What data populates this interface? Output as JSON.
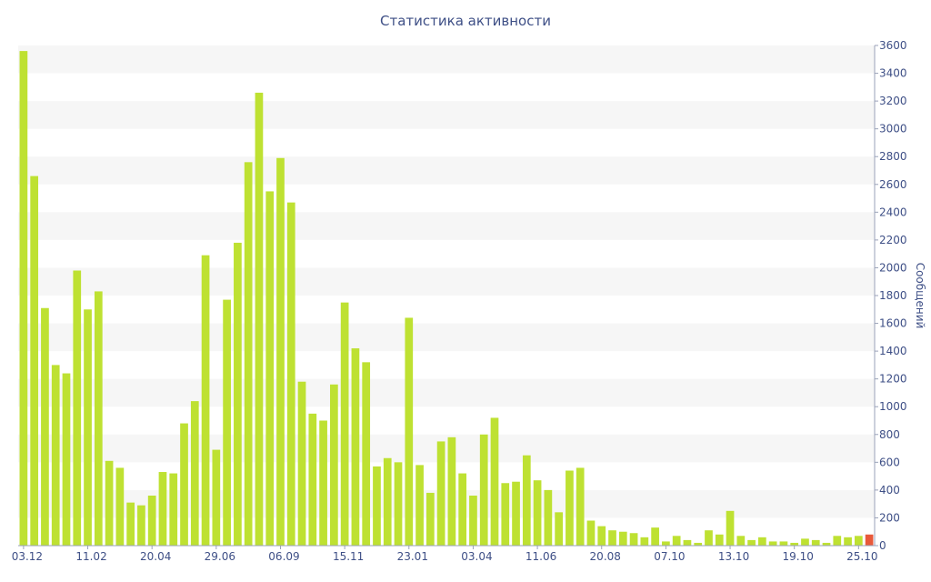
{
  "chart_data": {
    "type": "bar",
    "title": "Статистика активности",
    "ylabel": "Сообщений",
    "xlabel": "",
    "ylim": [
      0,
      3600
    ],
    "y_ticks": [
      0,
      200,
      400,
      600,
      800,
      1000,
      1200,
      1400,
      1600,
      1800,
      2000,
      2200,
      2400,
      2600,
      2800,
      3000,
      3200,
      3400,
      3600
    ],
    "y_axis_side": "right",
    "x_tick_labels": [
      {
        "index": 0,
        "label": "03.12"
      },
      {
        "index": 6,
        "label": "11.02"
      },
      {
        "index": 12,
        "label": "20.04"
      },
      {
        "index": 18,
        "label": "29.06"
      },
      {
        "index": 24,
        "label": "06.09"
      },
      {
        "index": 30,
        "label": "15.11"
      },
      {
        "index": 36,
        "label": "23.01"
      },
      {
        "index": 42,
        "label": "03.04"
      },
      {
        "index": 48,
        "label": "11.06"
      },
      {
        "index": 54,
        "label": "20.08"
      },
      {
        "index": 60,
        "label": "07.10"
      },
      {
        "index": 66,
        "label": "13.10"
      },
      {
        "index": 72,
        "label": "19.10"
      },
      {
        "index": 78,
        "label": "25.10"
      }
    ],
    "grid": "alternating horizontal bands",
    "colors": {
      "bar": "#bee132",
      "highlight_bar": "#e8593a",
      "band": "#f6f6f6",
      "text": "#3e4f86",
      "axis": "#9aa2b8"
    },
    "highlight_index": 79,
    "values": [
      3560,
      2660,
      1710,
      1300,
      1240,
      1980,
      1700,
      1830,
      610,
      560,
      310,
      290,
      360,
      530,
      520,
      880,
      1040,
      2090,
      690,
      1770,
      2180,
      2760,
      3260,
      2550,
      2790,
      2470,
      1180,
      950,
      900,
      1160,
      1750,
      1420,
      1320,
      570,
      630,
      600,
      1640,
      580,
      380,
      750,
      780,
      520,
      360,
      800,
      920,
      450,
      460,
      650,
      470,
      400,
      240,
      540,
      560,
      180,
      140,
      110,
      100,
      90,
      60,
      130,
      30,
      70,
      40,
      20,
      110,
      80,
      250,
      70,
      40,
      60,
      30,
      30,
      20,
      50,
      40,
      20,
      70,
      60,
      70,
      80
    ]
  }
}
